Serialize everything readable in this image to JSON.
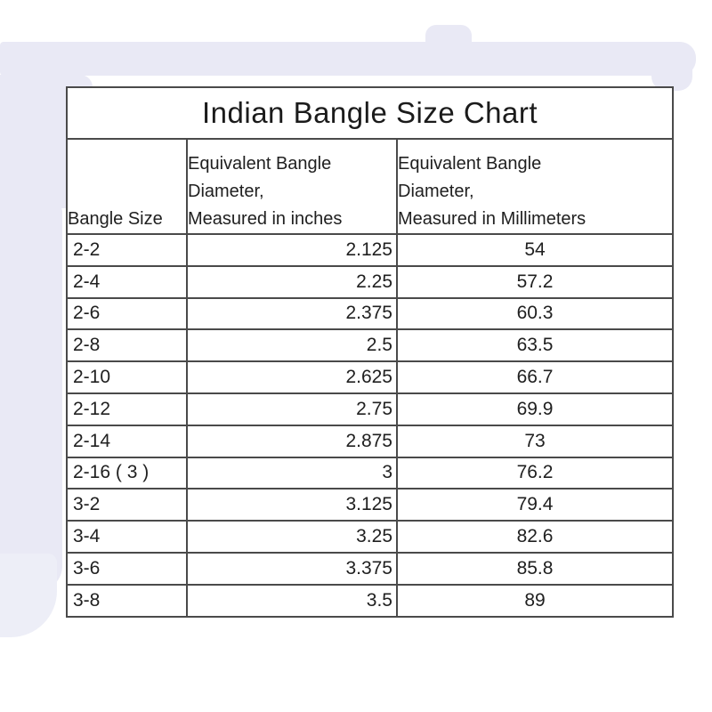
{
  "colors": {
    "background": "#ffffff",
    "watermark": "#e9e9f5",
    "table_border": "#4a4a4a",
    "text": "#202020"
  },
  "chart_data": {
    "type": "table",
    "title": "Indian Bangle Size Chart",
    "columns": [
      {
        "id": "size",
        "header": "Bangle Size",
        "header_lines": [
          "Bangle Size"
        ]
      },
      {
        "id": "inches",
        "header": "Equivalent Bangle Diameter, Measured in inches",
        "header_lines": [
          "Equivalent Bangle",
          "Diameter,",
          "Measured in inches"
        ]
      },
      {
        "id": "mm",
        "header": "Equivalent Bangle Diameter, Measured in Millimeters",
        "header_lines": [
          "Equivalent Bangle",
          "Diameter,",
          "Measured in Millimeters"
        ]
      }
    ],
    "rows": [
      [
        "2-2",
        "2.125",
        "54"
      ],
      [
        "2-4",
        "2.25",
        "57.2"
      ],
      [
        "2-6",
        "2.375",
        "60.3"
      ],
      [
        "2-8",
        "2.5",
        "63.5"
      ],
      [
        "2-10",
        "2.625",
        "66.7"
      ],
      [
        "2-12",
        "2.75",
        "69.9"
      ],
      [
        "2-14",
        "2.875",
        "73"
      ],
      [
        "2-16 ( 3 )",
        "3",
        "76.2"
      ],
      [
        "3-2",
        "3.125",
        "79.4"
      ],
      [
        "3-4",
        "3.25",
        "82.6"
      ],
      [
        "3-6",
        "3.375",
        "85.8"
      ],
      [
        "3-8",
        "3.5",
        "89"
      ]
    ]
  }
}
